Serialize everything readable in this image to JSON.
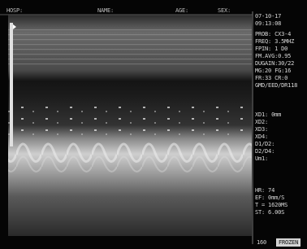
{
  "header": {
    "hosp": "HOSP:",
    "name": "NAME:",
    "age": "AGE:",
    "sex": "SEX:"
  },
  "status": {
    "date": "07-10-17",
    "time": "09:13:08",
    "params": [
      "PROB: CX3-4",
      "FREQ: 3.5MHZ",
      "FPIN: 1 D0",
      "FM.AVG:0.95",
      "DUGAIN:30/22",
      "MG:20 FG:16",
      "FR:33 CR:0",
      "GMD/EED/DR118"
    ],
    "measurements": [
      "XD1:  0mm",
      "XD2:",
      "XD3:",
      "XD4:",
      "D1/D2:",
      "D2/D4:",
      "Um1:"
    ],
    "cardiac": [
      "HR:  74",
      "EF:  0mm/S",
      "T = 1620MS",
      "ST: 6.00S"
    ],
    "depth": "160",
    "mode": "FROZEN"
  }
}
